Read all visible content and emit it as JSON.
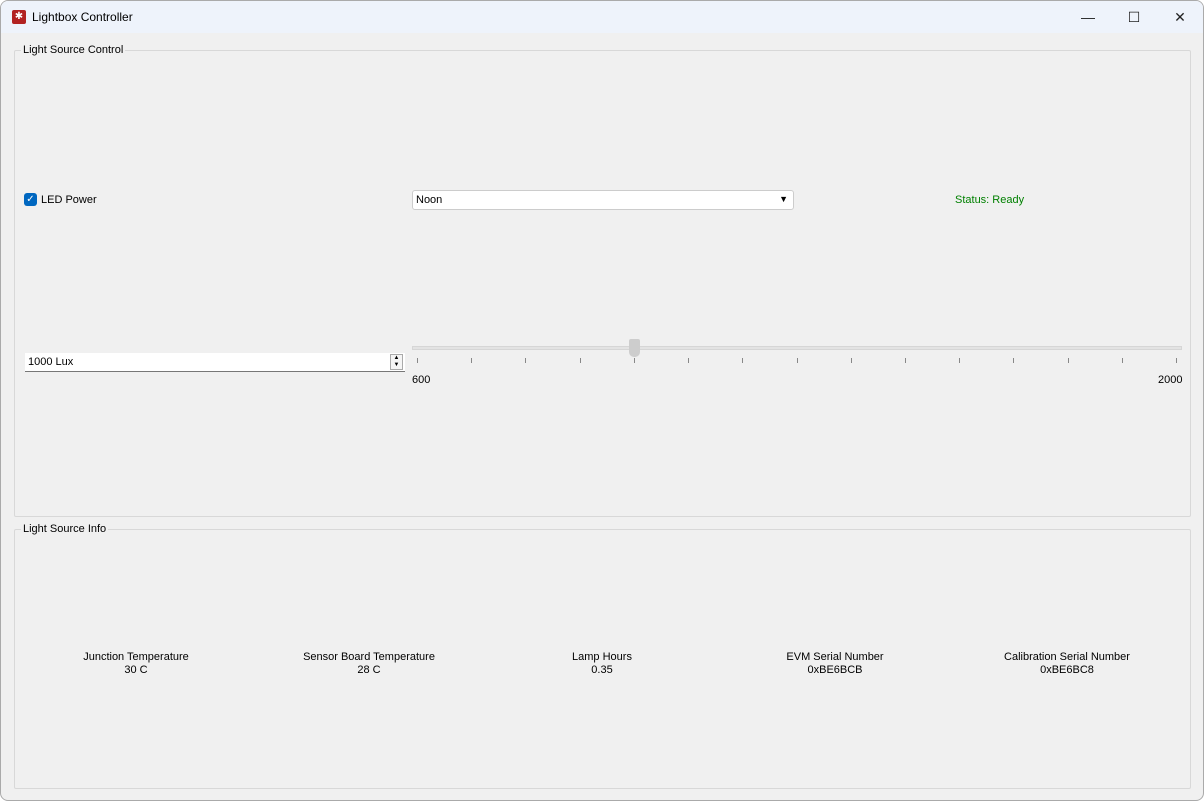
{
  "window": {
    "title": "Lightbox Controller",
    "icon": "lightbox-app-icon",
    "minimize": "—",
    "maximize": "☐",
    "close": "✕"
  },
  "control": {
    "group_label": "Light Source Control",
    "led_power": {
      "label": "LED Power",
      "checked": true
    },
    "preset": {
      "selected": "Noon"
    },
    "status": {
      "text": "Status: Ready",
      "color": "#008000"
    },
    "lux_spin": {
      "value": "1000 Lux"
    },
    "slider": {
      "min": 600,
      "max": 2000,
      "value": 1000,
      "tick_interval": 100,
      "min_label": "600",
      "max_label": "2000"
    }
  },
  "info": {
    "group_label": "Light Source Info",
    "items": [
      {
        "label": "Junction Temperature",
        "value": "30 C"
      },
      {
        "label": "Sensor Board Temperature",
        "value": "28 C"
      },
      {
        "label": "Lamp Hours",
        "value": "0.35"
      },
      {
        "label": "EVM Serial Number",
        "value": "0xBE6BCB"
      },
      {
        "label": "Calibration Serial Number",
        "value": "0xBE6BC8"
      }
    ]
  }
}
